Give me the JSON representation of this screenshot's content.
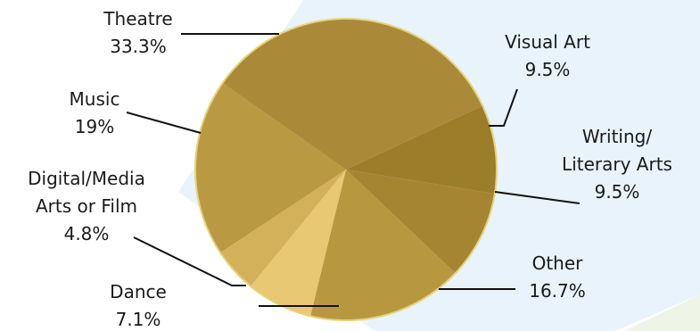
{
  "chart_data": {
    "type": "pie",
    "title": "",
    "start_angle_deg": 65,
    "direction": "clockwise",
    "slices": [
      {
        "name": "Visual Art",
        "label_lines": [
          "Visual Art"
        ],
        "value": 9.5,
        "value_label": "9.5%",
        "color": "#9c7d2a"
      },
      {
        "name": "Writing/ Literary Arts",
        "label_lines": [
          "Writing/",
          "Literary Arts"
        ],
        "value": 9.5,
        "value_label": "9.5%",
        "color": "#a68532"
      },
      {
        "name": "Other",
        "label_lines": [
          "Other"
        ],
        "value": 16.7,
        "value_label": "16.7%",
        "color": "#b8983f"
      },
      {
        "name": "Dance",
        "label_lines": [
          "Dance"
        ],
        "value": 7.1,
        "value_label": "7.1%",
        "color": "#e8c873"
      },
      {
        "name": "Digital/Media Arts or Film",
        "label_lines": [
          "Digital/Media",
          "Arts or Film"
        ],
        "value": 4.8,
        "value_label": "4.8%",
        "color": "#d3b15a"
      },
      {
        "name": "Music",
        "label_lines": [
          "Music"
        ],
        "value": 19,
        "value_label": "19%",
        "color": "#b99a43"
      },
      {
        "name": "Theatre",
        "label_lines": [
          "Theatre"
        ],
        "value": 33.3,
        "value_label": "33.3%",
        "color": "#aa8a38"
      }
    ],
    "outline_color": "#e6d27a",
    "legend": "none",
    "grid": false
  }
}
